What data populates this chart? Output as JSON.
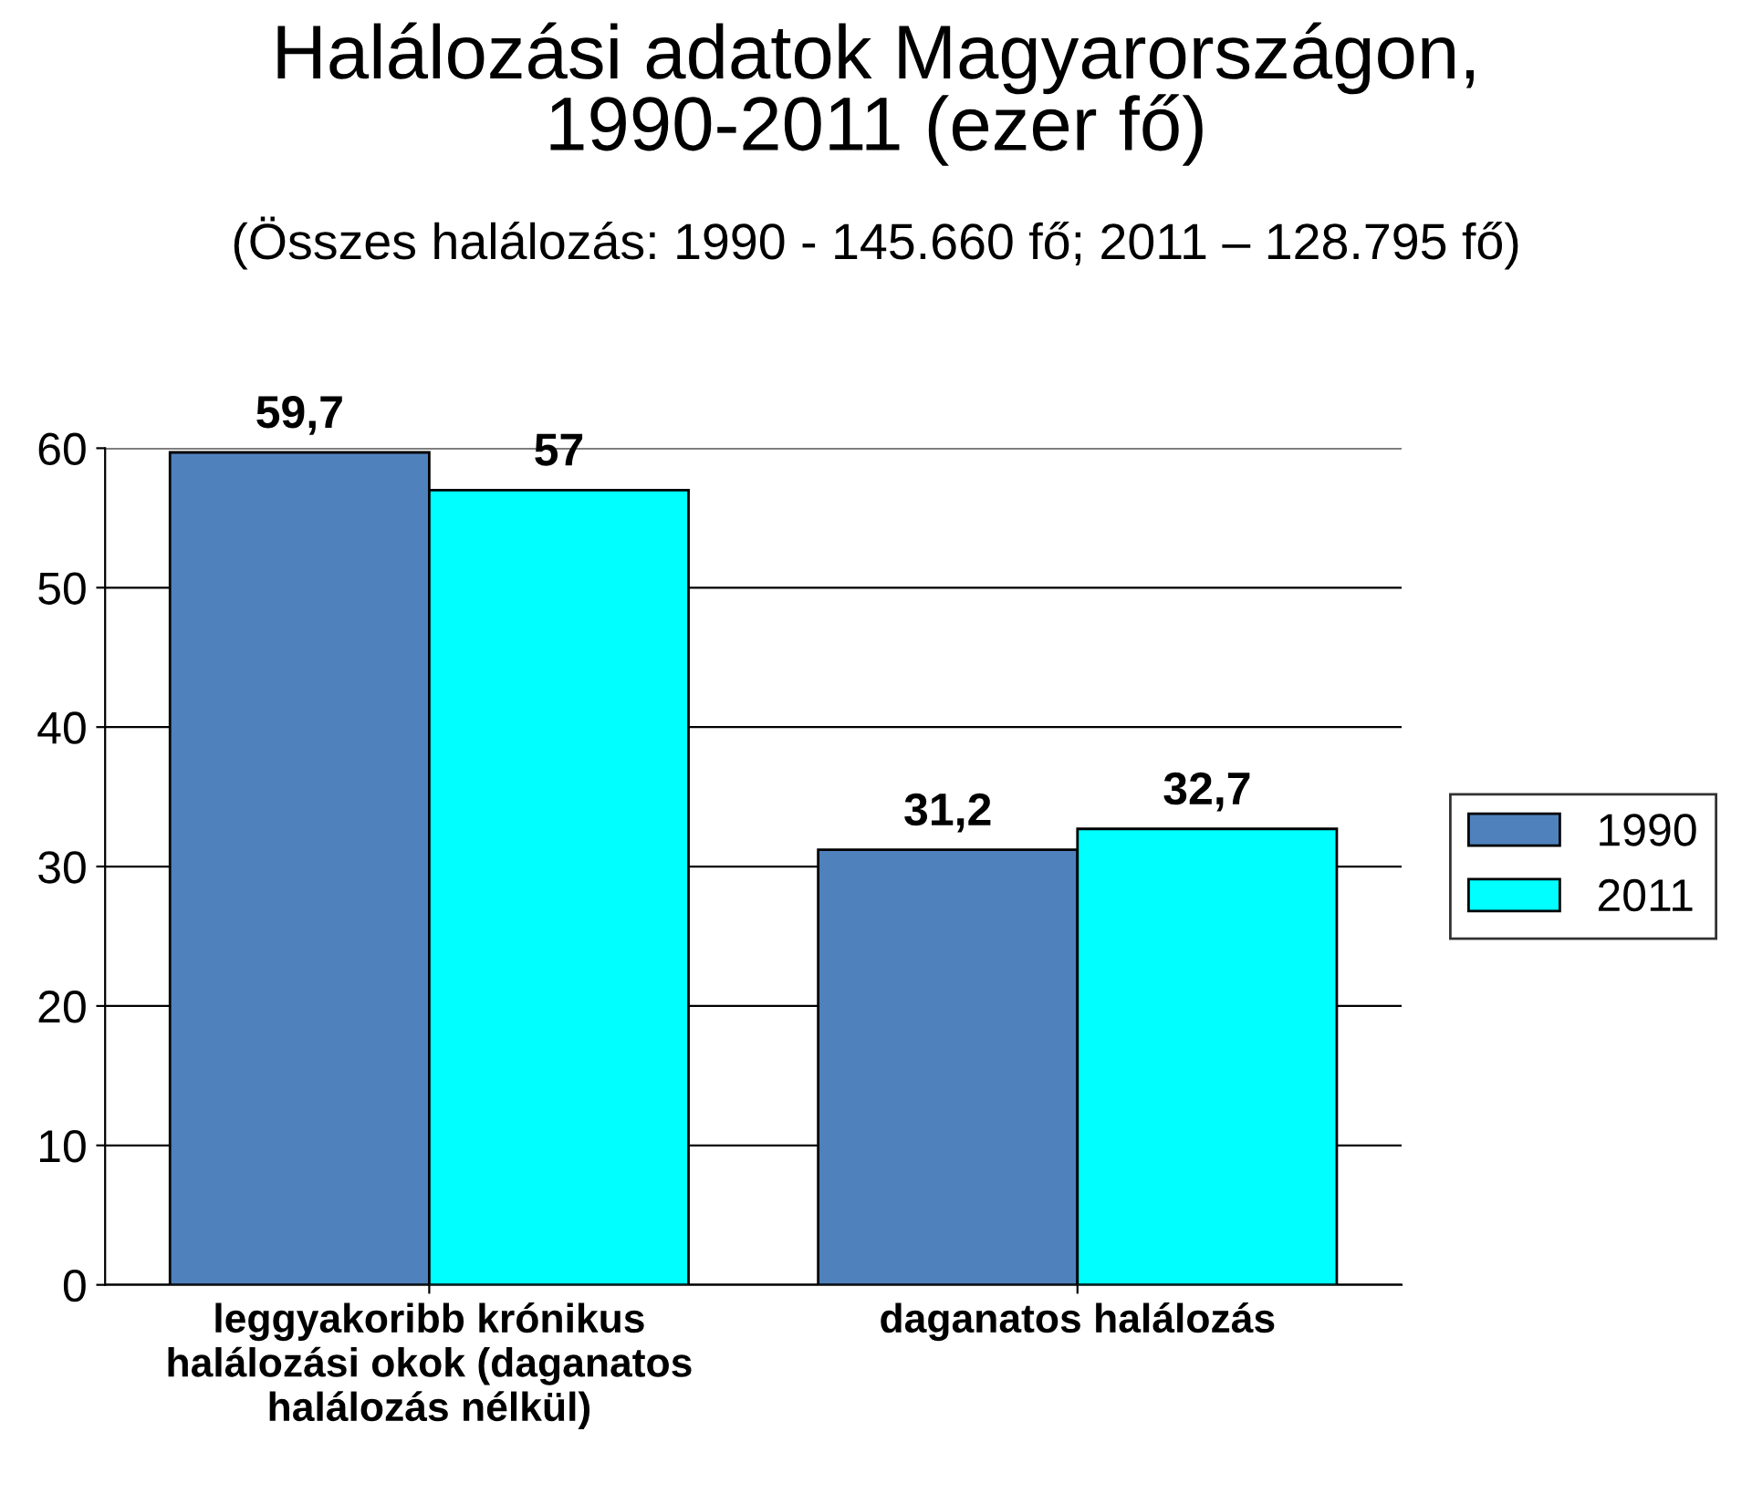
{
  "chart_data": {
    "type": "bar",
    "title": "Halálozási adatok Magyarországon,\n1990-2011 (ezer fő)",
    "subtitle": "(Összes halálozás: 1990 - 145.660 fő; 2011 – 128.795 fő)",
    "categories": [
      "leggyakoribb krónikus\nhalálozási okok (daganatos\nhalálozás nélkül)",
      "daganatos halálozás"
    ],
    "series": [
      {
        "name": "1990",
        "color": "#4f81bd",
        "values": [
          59.7,
          31.2
        ],
        "value_labels": [
          "59,7",
          "31,2"
        ]
      },
      {
        "name": "2011",
        "color": "#00ffff",
        "values": [
          57,
          32.7
        ],
        "value_labels": [
          "57",
          "32,7"
        ]
      }
    ],
    "ylim": [
      0,
      60
    ],
    "yticks": [
      0,
      10,
      20,
      30,
      40,
      50,
      60
    ],
    "grid": "y",
    "legend": "right"
  }
}
